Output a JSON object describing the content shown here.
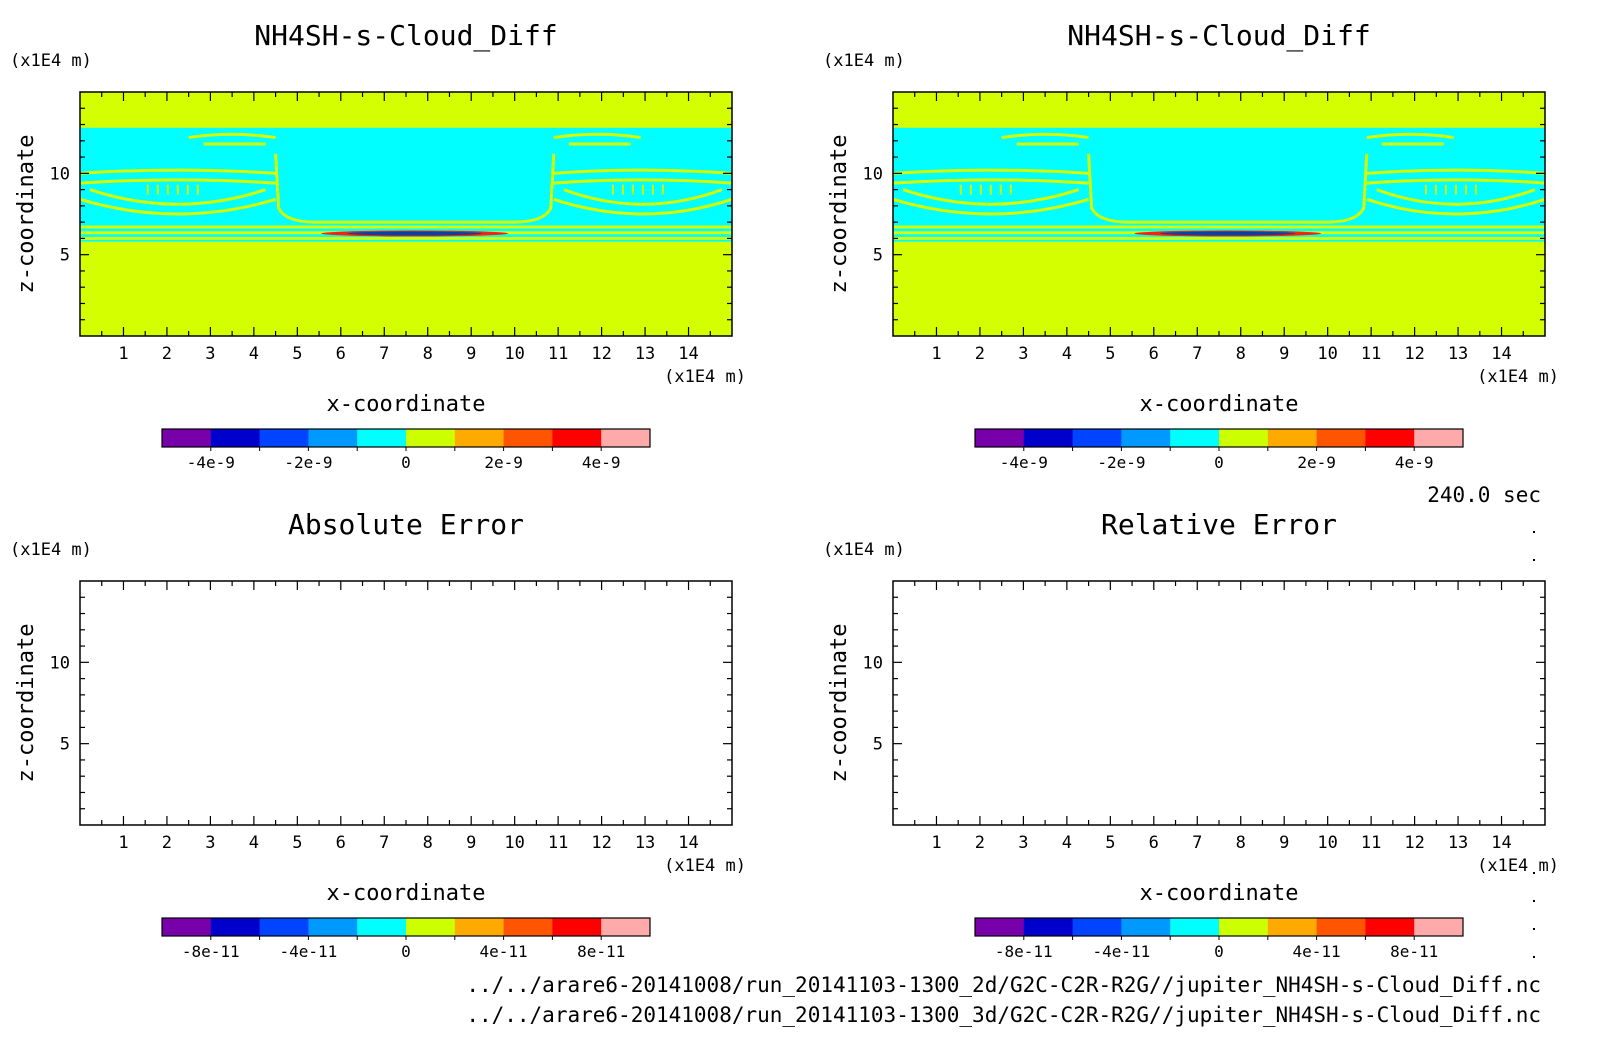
{
  "time_label": "240.0 sec",
  "files": [
    "../../arare6-20141008/run_20141103-1300_2d/G2C-C2R-R2G//jupiter_NH4SH-s-Cloud_Diff.nc",
    "../../arare6-20141008/run_20141103-1300_3d/G2C-C2R-R2G//jupiter_NH4SH-s-Cloud_Diff.nc"
  ],
  "colors": {
    "background_field": "#d4ff00",
    "cloud_band": "#00ffff",
    "contour": "#d4ff00",
    "core": "#0044aa",
    "core_edge": "#ff2200"
  },
  "chart_data": [
    {
      "type": "heatmap",
      "title": "NH4SH-s-Cloud_Diff",
      "xlabel": "x-coordinate",
      "ylabel": "z-coordinate",
      "xunit": "(x1E4 m)",
      "yunit": "(x1E4 m)",
      "xlim": [
        0,
        15
      ],
      "ylim": [
        0,
        15
      ],
      "xticks": [
        1,
        2,
        3,
        4,
        5,
        6,
        7,
        8,
        9,
        10,
        11,
        12,
        13,
        14
      ],
      "yticks": [
        5,
        10
      ],
      "has_field": true,
      "colorbar": {
        "colors": [
          "#7700aa",
          "#0000cc",
          "#0044ff",
          "#0099ff",
          "#00ffff",
          "#ccff00",
          "#ffaa00",
          "#ff5500",
          "#ff0000",
          "#ffaaaa"
        ],
        "ticks": [
          "-4e-9",
          "-2e-9",
          "0",
          "2e-9",
          "4e-9"
        ],
        "tick_fracs": [
          0.1,
          0.3,
          0.5,
          0.7,
          0.9
        ]
      }
    },
    {
      "type": "heatmap",
      "title": "NH4SH-s-Cloud_Diff",
      "xlabel": "x-coordinate",
      "ylabel": "z-coordinate",
      "xunit": "(x1E4 m)",
      "yunit": "(x1E4 m)",
      "xlim": [
        0,
        15
      ],
      "ylim": [
        0,
        15
      ],
      "xticks": [
        1,
        2,
        3,
        4,
        5,
        6,
        7,
        8,
        9,
        10,
        11,
        12,
        13,
        14
      ],
      "yticks": [
        5,
        10
      ],
      "has_field": true,
      "colorbar": {
        "colors": [
          "#7700aa",
          "#0000cc",
          "#0044ff",
          "#0099ff",
          "#00ffff",
          "#ccff00",
          "#ffaa00",
          "#ff5500",
          "#ff0000",
          "#ffaaaa"
        ],
        "ticks": [
          "-4e-9",
          "-2e-9",
          "0",
          "2e-9",
          "4e-9"
        ],
        "tick_fracs": [
          0.1,
          0.3,
          0.5,
          0.7,
          0.9
        ]
      }
    },
    {
      "type": "heatmap",
      "title": "Absolute Error",
      "xlabel": "x-coordinate",
      "ylabel": "z-coordinate",
      "xunit": "(x1E4 m)",
      "yunit": "(x1E4 m)",
      "xlim": [
        0,
        15
      ],
      "ylim": [
        0,
        15
      ],
      "xticks": [
        1,
        2,
        3,
        4,
        5,
        6,
        7,
        8,
        9,
        10,
        11,
        12,
        13,
        14
      ],
      "yticks": [
        5,
        10
      ],
      "has_field": false,
      "colorbar": {
        "colors": [
          "#7700aa",
          "#0000cc",
          "#0044ff",
          "#0099ff",
          "#00ffff",
          "#ccff00",
          "#ffaa00",
          "#ff5500",
          "#ff0000",
          "#ffaaaa"
        ],
        "ticks": [
          "-8e-11",
          "-4e-11",
          "0",
          "4e-11",
          "8e-11"
        ],
        "tick_fracs": [
          0.1,
          0.3,
          0.5,
          0.7,
          0.9
        ]
      }
    },
    {
      "type": "heatmap",
      "title": "Relative Error",
      "xlabel": "x-coordinate",
      "ylabel": "z-coordinate",
      "xunit": "(x1E4 m)",
      "yunit": "(x1E4 m)",
      "xlim": [
        0,
        15
      ],
      "ylim": [
        0,
        15
      ],
      "xticks": [
        1,
        2,
        3,
        4,
        5,
        6,
        7,
        8,
        9,
        10,
        11,
        12,
        13,
        14
      ],
      "yticks": [
        5,
        10
      ],
      "has_field": false,
      "colorbar": {
        "colors": [
          "#7700aa",
          "#0000cc",
          "#0044ff",
          "#0099ff",
          "#00ffff",
          "#ccff00",
          "#ffaa00",
          "#ff5500",
          "#ff0000",
          "#ffaaaa"
        ],
        "ticks": [
          "-8e-11",
          "-4e-11",
          "0",
          "4e-11",
          "8e-11"
        ],
        "tick_fracs": [
          0.1,
          0.3,
          0.5,
          0.7,
          0.9
        ]
      }
    }
  ]
}
